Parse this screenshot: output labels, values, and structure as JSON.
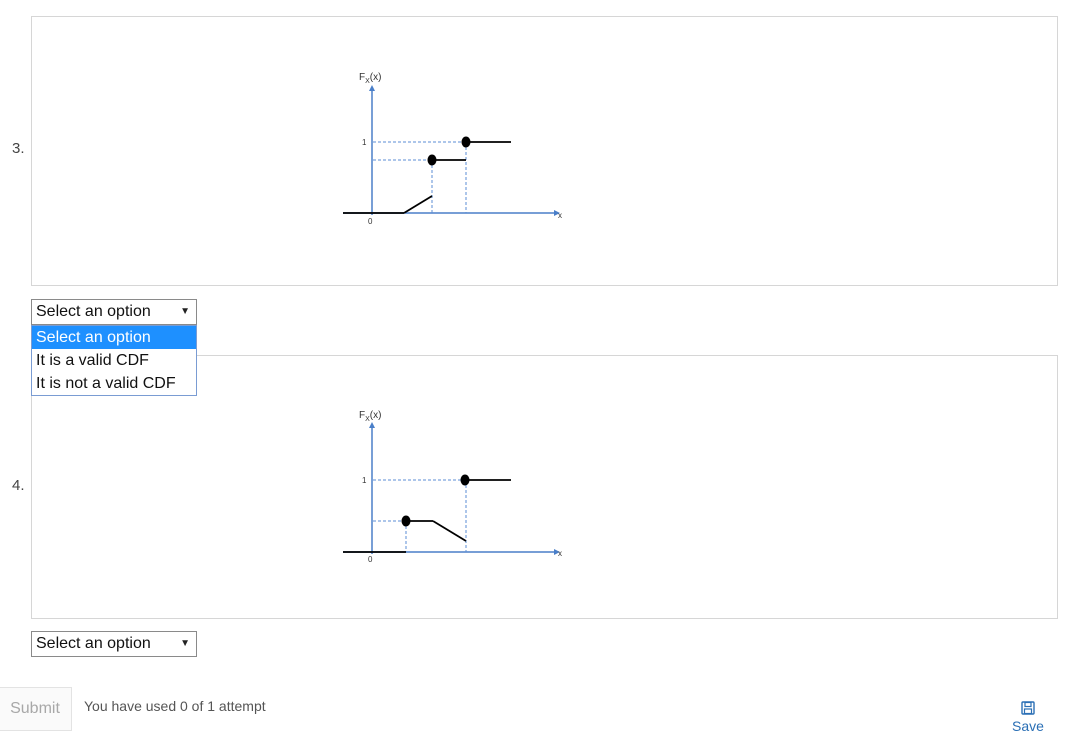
{
  "questions": [
    {
      "number": "3.",
      "graph": {
        "y_label": "F",
        "y_label_sub": "X",
        "y_label_arg": "(x)",
        "one_tick": "1",
        "origin": "0",
        "x_label": "x"
      },
      "select": {
        "value": "Select an option"
      }
    },
    {
      "number": "4.",
      "graph": {
        "y_label": "F",
        "y_label_sub": "X",
        "y_label_arg": "(x)",
        "one_tick": "1",
        "origin": "0",
        "x_label": "x"
      },
      "select": {
        "value": "Select an option"
      }
    }
  ],
  "dropdown": {
    "options": [
      "Select an option",
      "It is a valid CDF",
      "It is not a valid CDF"
    ]
  },
  "footer": {
    "submit_label": "Submit",
    "attempts_text": "You have used 0 of 1 attempt",
    "save_label": "Save"
  },
  "colors": {
    "axis": "#4a7fc9",
    "guide": "#5b8ed6",
    "curve": "#000000",
    "accent": "#1e90ff"
  },
  "icons": {
    "save": "floppy-disk-icon",
    "select_arrow": "triangle-down-icon"
  }
}
